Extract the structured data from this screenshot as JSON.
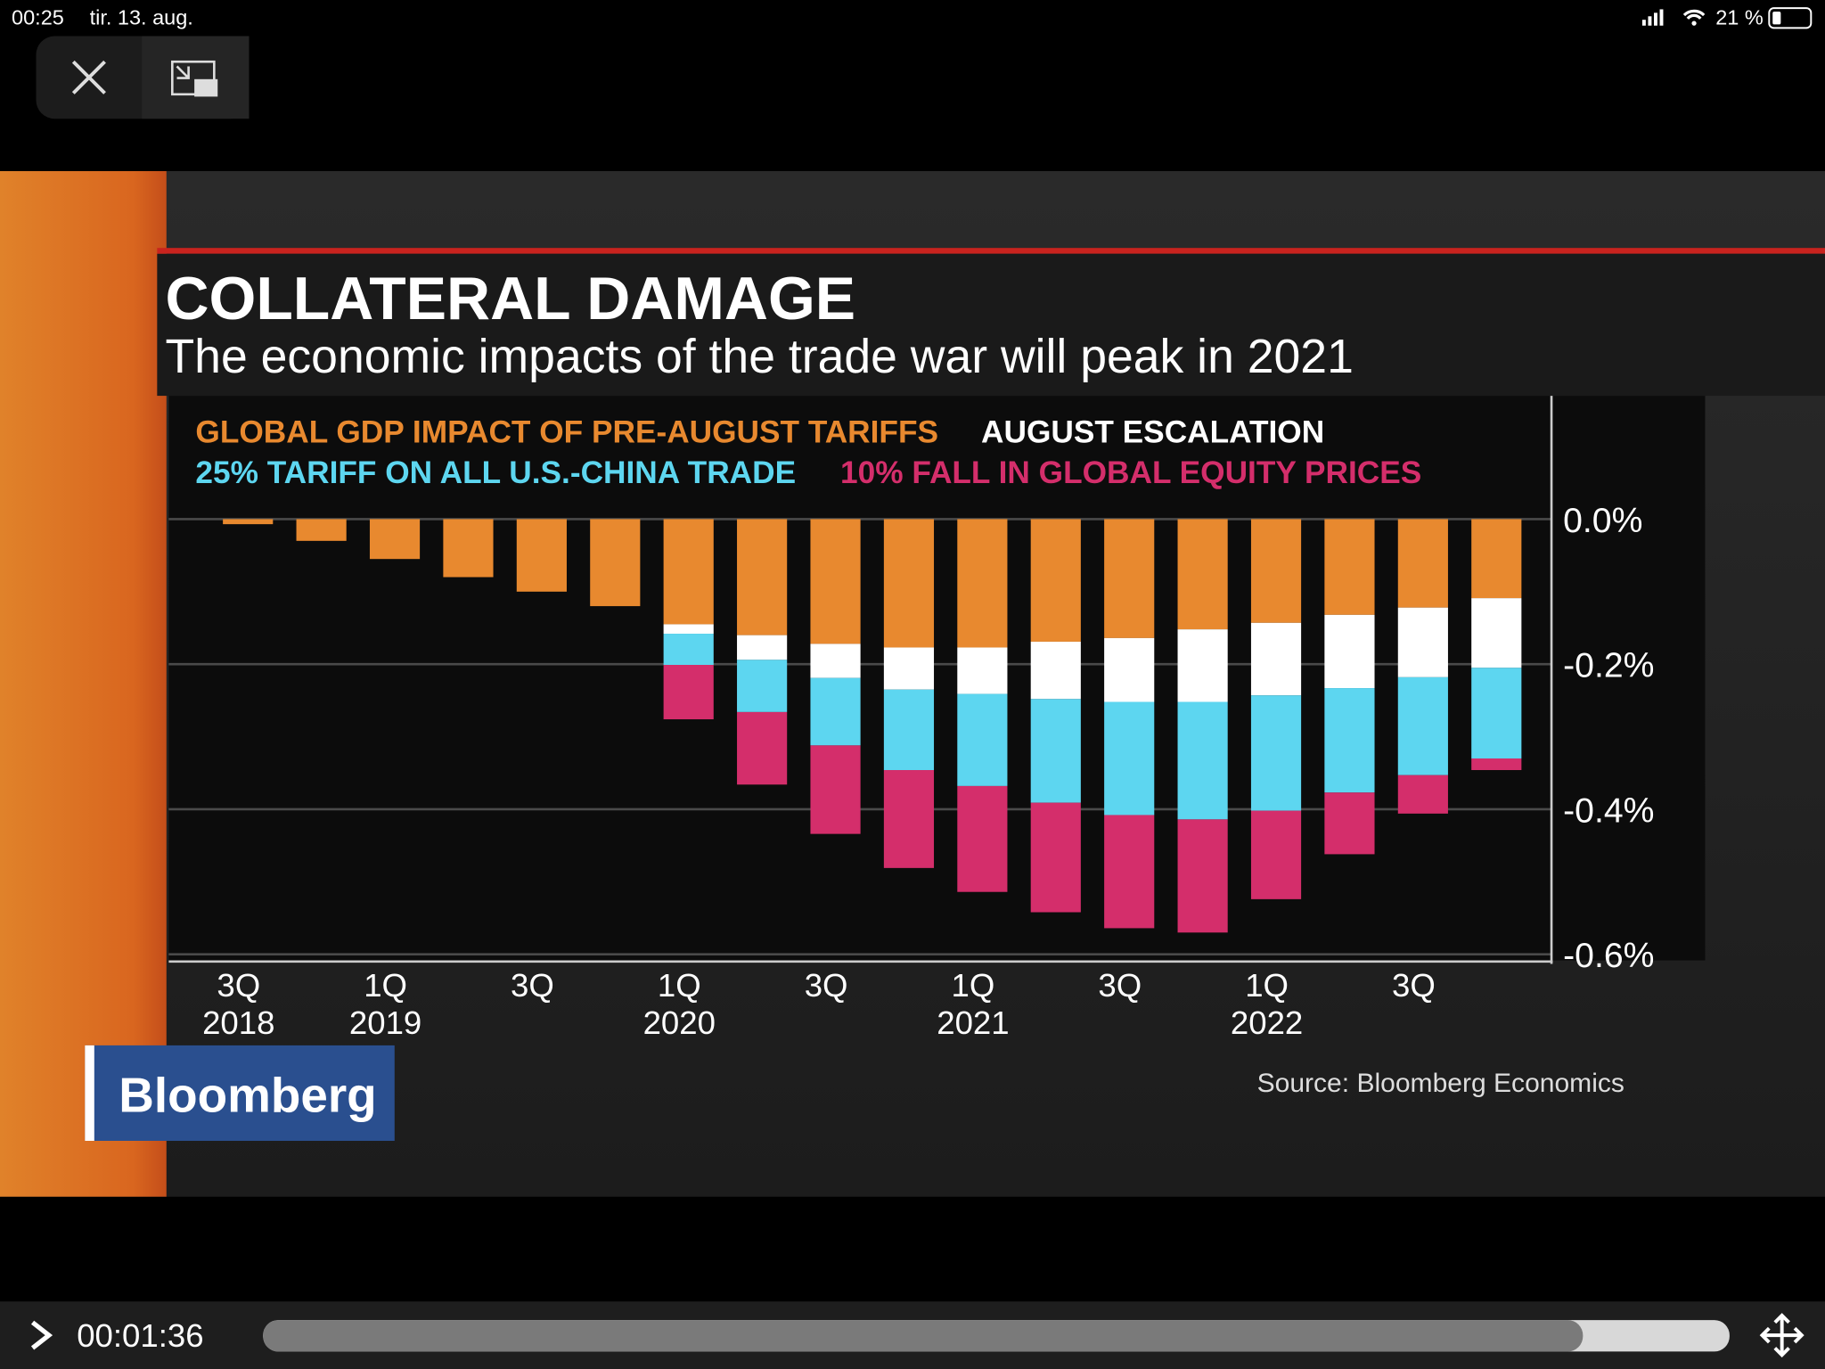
{
  "status_bar": {
    "time": "00:25",
    "date": "tir. 13. aug.",
    "battery": "21 %"
  },
  "player": {
    "elapsed": "00:01:36"
  },
  "chart_data": {
    "type": "bar",
    "stacked": true,
    "title": "COLLATERAL DAMAGE",
    "subtitle": "The economic impacts of the trade war will peak in 2021",
    "source": "Source: Bloomberg Economics",
    "logo": "Bloomberg",
    "categories": [
      "3Q 2018",
      null,
      "1Q 2019",
      null,
      "3Q",
      null,
      "1Q 2020",
      null,
      "3Q",
      null,
      "1Q 2021",
      null,
      "3Q",
      null,
      "1Q 2022",
      null,
      "3Q",
      null
    ],
    "series": [
      {
        "name": "GLOBAL GDP IMPACT OF PRE-AUGUST TARIFFS",
        "color": "#e8892f",
        "values": [
          -0.007,
          -0.03,
          -0.055,
          -0.08,
          -0.1,
          -0.12,
          -0.145,
          -0.16,
          -0.172,
          -0.177,
          -0.177,
          -0.169,
          -0.164,
          -0.152,
          -0.143,
          -0.132,
          -0.122,
          -0.109
        ]
      },
      {
        "name": "AUGUST ESCALATION",
        "color": "#ffffff",
        "values": [
          0,
          0,
          0,
          0,
          0,
          0,
          -0.013,
          -0.034,
          -0.047,
          -0.058,
          -0.064,
          -0.079,
          -0.088,
          -0.1,
          -0.1,
          -0.101,
          -0.096,
          -0.096
        ]
      },
      {
        "name": "25% TARIFF ON ALL U.S.-CHINA TRADE",
        "color": "#5dd6f0",
        "values": [
          0,
          0,
          0,
          0,
          0,
          0,
          -0.043,
          -0.072,
          -0.093,
          -0.111,
          -0.127,
          -0.143,
          -0.156,
          -0.162,
          -0.159,
          -0.144,
          -0.135,
          -0.125
        ]
      },
      {
        "name": "10% FALL IN GLOBAL EQUITY PRICES",
        "color": "#d42e6b",
        "values": [
          0,
          0,
          0,
          0,
          0,
          0,
          -0.075,
          -0.1,
          -0.122,
          -0.135,
          -0.146,
          -0.151,
          -0.156,
          -0.156,
          -0.122,
          -0.085,
          -0.053,
          -0.016
        ]
      }
    ],
    "ylim": [
      -0.61,
      0.17
    ],
    "yticks": [
      {
        "value": 0,
        "label": "0.0%"
      },
      {
        "value": -0.2,
        "label": "-0.2%"
      },
      {
        "value": -0.4,
        "label": "-0.4%"
      },
      {
        "value": -0.6,
        "label": "-0.6%"
      }
    ],
    "grid": true,
    "axis_side": "right"
  }
}
